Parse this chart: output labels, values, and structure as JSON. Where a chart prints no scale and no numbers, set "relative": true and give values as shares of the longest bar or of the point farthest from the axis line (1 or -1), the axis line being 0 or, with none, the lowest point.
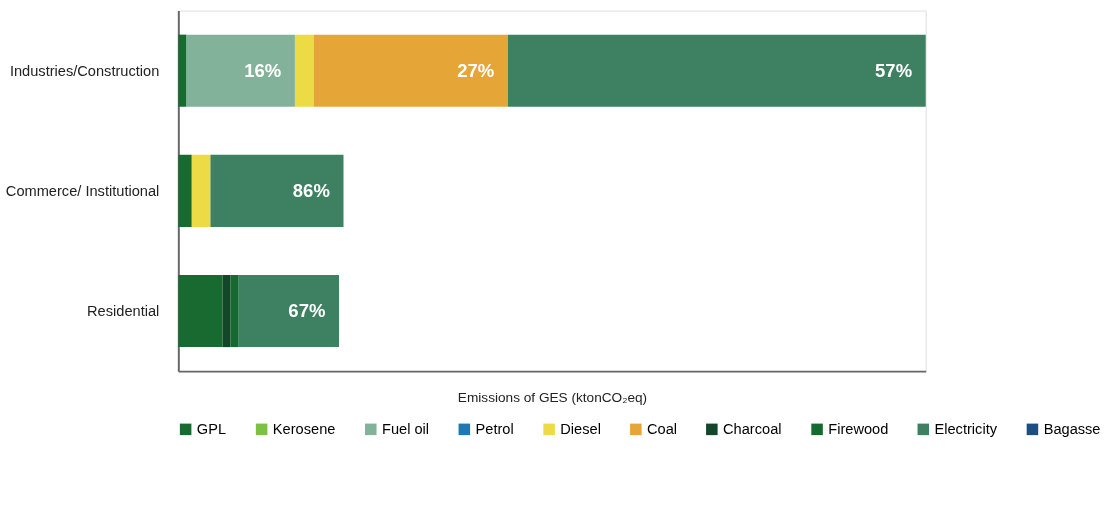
{
  "chart_data": {
    "type": "bar",
    "orientation": "horizontal",
    "stacked": true,
    "relative": true,
    "categories": [
      "Industries/Construction",
      "Commerce/ Institutional",
      "Residential"
    ],
    "xlabel": "Emissions of GES (ktonCO₂eq)",
    "legend": "bottom",
    "annotations": [
      {
        "text": "16%",
        "x": 0.156,
        "y": "Industries/Construction"
      },
      {
        "text": "27%",
        "x": 0.441,
        "y": "Industries/Construction"
      },
      {
        "text": "57%",
        "x": 1.0,
        "y": "Industries/Construction"
      },
      {
        "text": "86%",
        "x": 0.221,
        "y": "Commerce/ Institutional"
      },
      {
        "text": "67%",
        "x": 0.215,
        "y": "Residential"
      }
    ],
    "series": [
      {
        "name": "GPL",
        "color": "#186a30",
        "values": [
          0.011,
          0.018,
          0.059
        ]
      },
      {
        "name": "Kerosene",
        "color": "#7dc142",
        "values": [
          null,
          null,
          null
        ]
      },
      {
        "name": "Fuel oil",
        "color": "#82b29a",
        "values": [
          0.145,
          null,
          null
        ]
      },
      {
        "name": "Petrol",
        "color": "#1f77b4",
        "values": [
          null,
          null,
          null
        ]
      },
      {
        "name": "Diesel",
        "color": "#eddb46",
        "values": [
          0.025,
          0.025,
          null
        ]
      },
      {
        "name": "Coal",
        "color": "#e6a537",
        "values": [
          0.26,
          null,
          null
        ]
      },
      {
        "name": "Charcoal",
        "color": "#14472a",
        "values": [
          null,
          null,
          0.011
        ]
      },
      {
        "name": "Firewood",
        "color": "#176a2f",
        "values": [
          null,
          null,
          0.01
        ]
      },
      {
        "name": "Electricity",
        "color": "#3d8062",
        "values": [
          0.559,
          0.178,
          0.135
        ]
      },
      {
        "name": "Bagasse",
        "color": "#1c4e80",
        "values": [
          null,
          null,
          null
        ]
      }
    ]
  }
}
